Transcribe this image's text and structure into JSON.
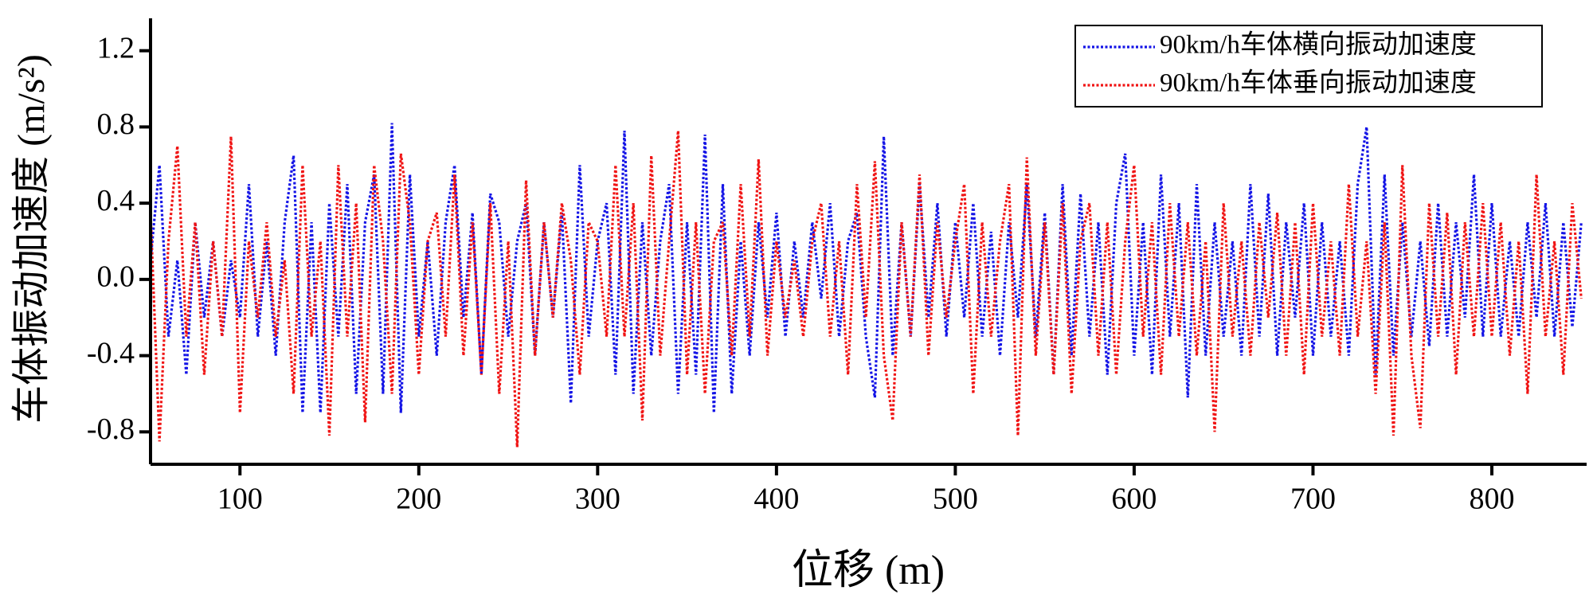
{
  "chart_data": {
    "type": "line",
    "xlabel": "位移 (m)",
    "ylabel": "车体振动加速度 (m/s²)",
    "xlim": [
      50,
      853
    ],
    "xticks": [
      100,
      200,
      300,
      400,
      500,
      600,
      700,
      800
    ],
    "ylim": [
      -0.97,
      1.37
    ],
    "yticks": [
      -0.8,
      -0.4,
      {
        "value": 0,
        "label": "0.0"
      },
      0.4,
      0.8,
      1.2
    ],
    "legend": "upper right",
    "x": [
      50,
      55,
      60,
      65,
      70,
      75,
      80,
      85,
      90,
      95,
      100,
      105,
      110,
      115,
      120,
      125,
      130,
      135,
      140,
      145,
      150,
      155,
      160,
      165,
      170,
      175,
      180,
      185,
      190,
      195,
      200,
      205,
      210,
      215,
      220,
      225,
      230,
      235,
      240,
      245,
      250,
      255,
      260,
      265,
      270,
      275,
      280,
      285,
      290,
      295,
      300,
      305,
      310,
      315,
      320,
      325,
      330,
      335,
      340,
      345,
      350,
      355,
      360,
      365,
      370,
      375,
      380,
      385,
      390,
      395,
      400,
      405,
      410,
      415,
      420,
      425,
      430,
      435,
      440,
      445,
      450,
      455,
      460,
      465,
      470,
      475,
      480,
      485,
      490,
      495,
      500,
      505,
      510,
      515,
      520,
      525,
      530,
      535,
      540,
      545,
      550,
      555,
      560,
      565,
      570,
      575,
      580,
      585,
      590,
      595,
      600,
      605,
      610,
      615,
      620,
      625,
      630,
      635,
      640,
      645,
      650,
      655,
      660,
      665,
      670,
      675,
      680,
      685,
      690,
      695,
      700,
      705,
      710,
      715,
      720,
      725,
      730,
      735,
      740,
      745,
      750,
      755,
      760,
      765,
      770,
      775,
      780,
      785,
      790,
      795,
      800,
      805,
      810,
      815,
      820,
      825,
      830,
      835,
      840,
      845,
      850
    ],
    "series": [
      {
        "name": "90km/h车体横向振动加速度",
        "color": "#1414e6",
        "values": [
          0.1,
          0.6,
          -0.3,
          0.1,
          -0.5,
          0.3,
          -0.2,
          0.2,
          -0.3,
          0.1,
          -0.2,
          0.5,
          -0.3,
          0.2,
          -0.4,
          0.3,
          0.65,
          -0.7,
          0.3,
          -0.7,
          0.4,
          -0.3,
          0.5,
          -0.6,
          0.3,
          0.55,
          -0.6,
          0.82,
          -0.7,
          0.55,
          -0.3,
          0.2,
          -0.4,
          0.3,
          0.6,
          -0.2,
          0.35,
          -0.5,
          0.45,
          0.3,
          -0.3,
          0.2,
          0.4,
          -0.4,
          0.3,
          -0.2,
          0.35,
          -0.65,
          0.6,
          -0.3,
          0.2,
          0.4,
          -0.5,
          0.78,
          -0.6,
          0.3,
          -0.4,
          0.2,
          0.5,
          -0.6,
          0.3,
          -0.5,
          0.76,
          -0.7,
          0.5,
          -0.6,
          0.2,
          -0.4,
          0.3,
          -0.2,
          0.35,
          -0.3,
          0.2,
          -0.2,
          0.3,
          -0.1,
          0.4,
          -0.3,
          0.2,
          0.35,
          -0.3,
          -0.62,
          0.75,
          -0.4,
          0.3,
          -0.3,
          0.5,
          -0.2,
          0.4,
          -0.3,
          0.3,
          -0.2,
          0.4,
          -0.3,
          0.25,
          -0.4,
          0.3,
          -0.2,
          0.5,
          -0.3,
          0.35,
          -0.5,
          0.5,
          -0.4,
          0.45,
          -0.3,
          0.3,
          -0.5,
          0.4,
          0.66,
          -0.4,
          0.3,
          -0.5,
          0.55,
          -0.3,
          0.4,
          -0.62,
          0.5,
          -0.4,
          0.3,
          -0.3,
          0.2,
          -0.4,
          0.5,
          -0.3,
          0.45,
          -0.4,
          0.3,
          -0.2,
          0.4,
          -0.4,
          0.3,
          -0.3,
          0.2,
          -0.4,
          0.5,
          0.8,
          -0.5,
          0.55,
          -0.4,
          0.3,
          -0.3,
          0.2,
          -0.35,
          0.4,
          -0.3,
          0.3,
          -0.2,
          0.55,
          -0.3,
          0.4,
          -0.3,
          0.2,
          -0.3,
          0.3,
          -0.2,
          0.4,
          -0.3,
          0.3,
          -0.25,
          0.3
        ]
      },
      {
        "name": "90km/h车体垂向振动加速度",
        "color": "#f01414",
        "values": [
          0.35,
          -0.85,
          0.2,
          0.7,
          -0.3,
          0.3,
          -0.5,
          0.2,
          -0.3,
          0.75,
          -0.7,
          0.2,
          -0.2,
          0.3,
          -0.3,
          0.1,
          -0.6,
          0.6,
          -0.3,
          0.2,
          -0.82,
          0.6,
          -0.3,
          0.4,
          -0.75,
          0.6,
          0.2,
          -0.6,
          0.66,
          0.3,
          -0.5,
          0.2,
          0.35,
          -0.3,
          0.55,
          -0.4,
          0.3,
          -0.5,
          0.4,
          -0.6,
          0.2,
          -0.88,
          0.52,
          -0.4,
          0.3,
          -0.2,
          0.4,
          0.1,
          -0.5,
          0.3,
          0.2,
          -0.3,
          0.6,
          -0.3,
          0.4,
          -0.74,
          0.65,
          -0.4,
          0.2,
          0.78,
          -0.5,
          0.3,
          -0.6,
          0.2,
          0.3,
          -0.4,
          0.5,
          -0.3,
          0.63,
          -0.4,
          0.2,
          -0.2,
          0.1,
          -0.3,
          0.2,
          0.4,
          -0.3,
          0.2,
          -0.5,
          0.5,
          -0.2,
          0.62,
          -0.4,
          -0.74,
          0.3,
          -0.3,
          0.55,
          -0.4,
          0.3,
          -0.2,
          0.2,
          0.5,
          -0.6,
          0.3,
          -0.3,
          0.2,
          0.5,
          -0.82,
          0.64,
          -0.4,
          0.3,
          -0.5,
          0.4,
          -0.6,
          0.2,
          0.4,
          -0.4,
          0.3,
          -0.5,
          0.2,
          0.6,
          -0.3,
          0.3,
          -0.5,
          0.4,
          -0.3,
          0.3,
          -0.4,
          0.2,
          -0.8,
          0.4,
          -0.3,
          0.2,
          -0.4,
          0.3,
          -0.2,
          0.35,
          -0.4,
          0.3,
          -0.5,
          0.4,
          -0.3,
          0.2,
          -0.4,
          0.5,
          -0.3,
          0.2,
          -0.6,
          0.3,
          -0.82,
          0.6,
          -0.4,
          -0.78,
          0.4,
          -0.3,
          0.35,
          -0.5,
          0.3,
          -0.3,
          0.4,
          -0.3,
          0.3,
          -0.4,
          0.2,
          -0.6,
          0.55,
          -0.3,
          0.2,
          -0.5,
          0.4,
          -0.1
        ]
      }
    ]
  }
}
